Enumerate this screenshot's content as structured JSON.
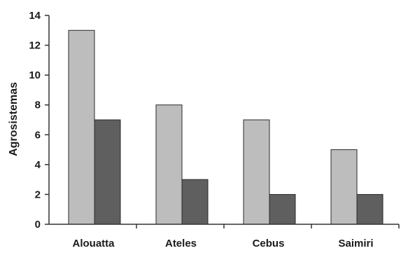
{
  "chart_data": {
    "type": "bar",
    "categories": [
      "Alouatta",
      "Ateles",
      "Cebus",
      "Saimiri"
    ],
    "series": [
      {
        "values": [
          13,
          8,
          7,
          5
        ],
        "color": "#bdbdbd"
      },
      {
        "values": [
          7,
          3,
          2,
          2
        ],
        "color": "#5f5f5f"
      }
    ],
    "ylabel": "Agrosistemas",
    "xlabel": "",
    "title": "",
    "ylim": [
      0,
      14
    ],
    "yticks": [
      0,
      2,
      4,
      6,
      8,
      10,
      12,
      14
    ],
    "grid": false,
    "legend": "none"
  }
}
